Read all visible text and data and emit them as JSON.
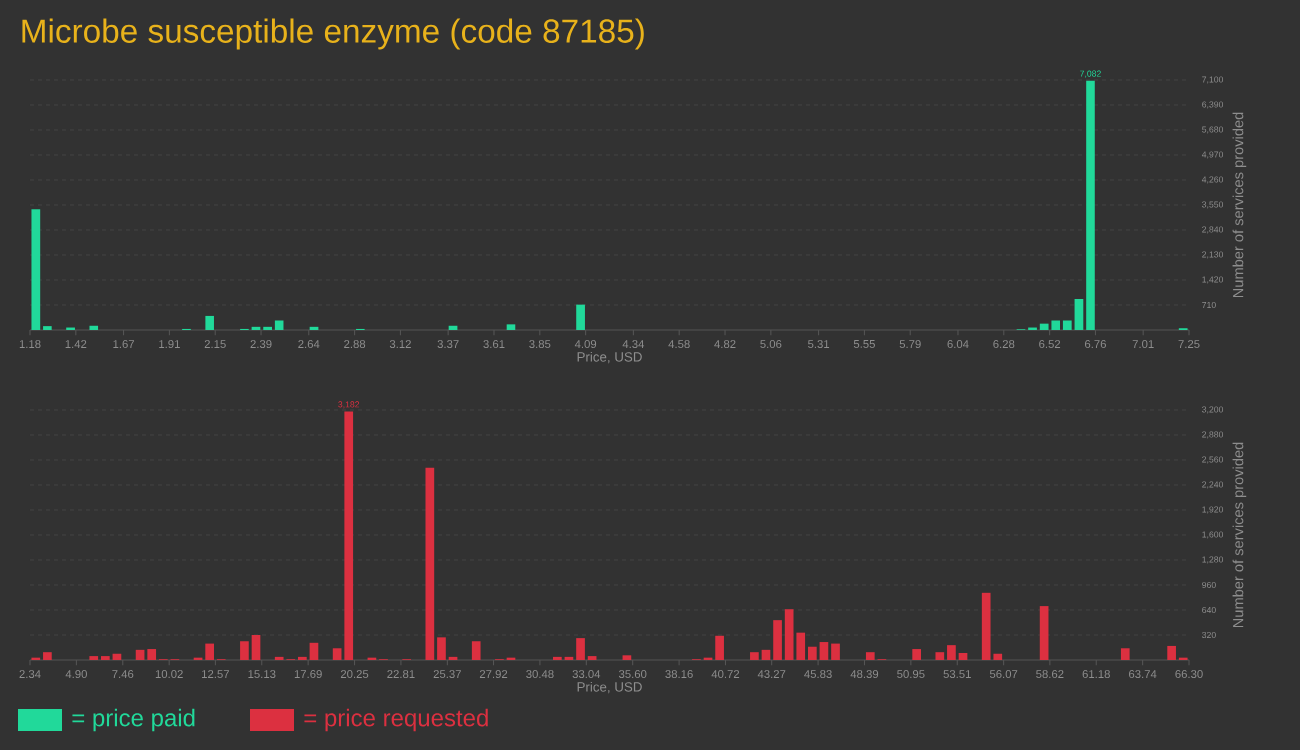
{
  "chart_data": [
    {
      "type": "histogram",
      "title": "Microbe susceptible enzyme (code 87185)",
      "xlabel": "Price, USD",
      "ylabel": "Number of services provided",
      "grid": "y",
      "legend": "bottom",
      "bins": [
        1.18,
        1.241,
        1.301,
        1.362,
        1.423,
        1.484,
        1.544,
        1.605,
        1.666,
        1.726,
        1.787,
        1.848,
        1.908,
        1.969,
        2.03,
        2.091,
        2.151,
        2.212,
        2.273,
        2.333,
        2.394,
        2.455,
        2.515,
        2.576,
        2.637,
        2.698,
        2.758,
        2.819,
        2.88,
        2.94,
        3.001,
        3.062,
        3.122,
        3.183,
        3.244,
        3.305,
        3.365,
        3.426,
        3.487,
        3.547,
        3.608,
        3.669,
        3.729,
        3.79,
        3.851,
        3.912,
        3.972,
        4.033,
        4.094,
        4.154,
        4.215,
        4.276,
        4.336,
        4.397,
        4.458,
        4.519,
        4.579,
        4.64,
        4.701,
        4.761,
        4.822,
        4.883,
        4.943,
        5.004,
        5.065,
        5.126,
        5.186,
        5.247,
        5.308,
        5.368,
        5.429,
        5.49,
        5.55,
        5.611,
        5.672,
        5.733,
        5.793,
        5.854,
        5.915,
        5.975,
        6.036,
        6.097,
        6.157,
        6.218,
        6.279,
        6.34,
        6.4,
        6.461,
        6.522,
        6.582,
        6.643,
        6.704,
        6.764,
        6.825,
        6.886,
        6.947,
        7.007,
        7.068,
        7.129,
        7.189,
        7.25
      ],
      "series": [
        {
          "name": "= price paid",
          "color": "#21d99a",
          "values": [
            3430,
            110,
            0,
            70,
            0,
            120,
            0,
            0,
            0,
            0,
            0,
            0,
            0,
            30,
            0,
            400,
            0,
            0,
            30,
            90,
            90,
            270,
            0,
            0,
            90,
            0,
            0,
            0,
            30,
            0,
            0,
            0,
            0,
            0,
            0,
            0,
            120,
            0,
            0,
            0,
            0,
            160,
            0,
            0,
            0,
            0,
            0,
            720,
            0,
            0,
            0,
            0,
            0,
            0,
            0,
            0,
            0,
            0,
            0,
            0,
            0,
            0,
            0,
            0,
            0,
            0,
            0,
            0,
            0,
            0,
            0,
            0,
            0,
            0,
            0,
            0,
            0,
            0,
            0,
            0,
            0,
            0,
            0,
            0,
            0,
            20,
            70,
            180,
            270,
            270,
            880,
            7082,
            0,
            0,
            0,
            0,
            0,
            0,
            0,
            50
          ],
          "value_labels": [
            null,
            null,
            null,
            null,
            null,
            null,
            null,
            null,
            null,
            null,
            null,
            null,
            null,
            null,
            null,
            null,
            null,
            null,
            null,
            null,
            null,
            null,
            null,
            null,
            null,
            null,
            null,
            null,
            null,
            null,
            null,
            null,
            null,
            null,
            null,
            null,
            null,
            null,
            null,
            null,
            null,
            null,
            null,
            null,
            null,
            null,
            null,
            null,
            null,
            null,
            null,
            null,
            null,
            null,
            null,
            null,
            null,
            null,
            null,
            null,
            null,
            null,
            null,
            null,
            null,
            null,
            null,
            null,
            null,
            null,
            null,
            null,
            null,
            null,
            null,
            null,
            null,
            null,
            null,
            null,
            null,
            null,
            null,
            null,
            null,
            null,
            null,
            null,
            null,
            null,
            null,
            "7,082",
            null,
            null,
            null,
            null,
            null,
            null,
            null,
            null
          ]
        }
      ],
      "xlim": [
        1.18,
        7.25
      ],
      "xticks": [
        1.18,
        1.42,
        1.67,
        1.91,
        2.15,
        2.39,
        2.64,
        2.88,
        3.12,
        3.37,
        3.61,
        3.85,
        4.09,
        4.34,
        4.58,
        4.82,
        5.06,
        5.31,
        5.55,
        5.79,
        6.04,
        6.28,
        6.52,
        6.76,
        7.01,
        7.25
      ],
      "ylim": [
        0,
        7100
      ],
      "yticks": [
        710,
        {
          "value": 1420,
          "label": "1,420"
        },
        {
          "value": 2130,
          "label": "2,130"
        },
        {
          "value": 2840,
          "label": "2,840"
        },
        {
          "value": 3550,
          "label": "3,550"
        },
        {
          "value": 4260,
          "label": "4,260"
        },
        {
          "value": 4970,
          "label": "4,970"
        },
        {
          "value": 5680,
          "label": "5,680"
        },
        {
          "value": 6390,
          "label": "6,390"
        },
        {
          "value": 7100,
          "label": "7,100"
        }
      ]
    },
    {
      "type": "histogram",
      "xlabel": "Price, USD",
      "ylabel": "Number of services provided",
      "grid": "y",
      "legend": "bottom",
      "bins": [
        2.34,
        2.98,
        3.619,
        4.259,
        4.898,
        5.538,
        6.178,
        6.817,
        7.457,
        8.096,
        8.736,
        9.376,
        10.015,
        10.655,
        11.294,
        11.934,
        12.574,
        13.213,
        13.853,
        14.492,
        15.132,
        15.772,
        16.411,
        17.051,
        17.69,
        18.33,
        18.97,
        19.609,
        20.249,
        20.888,
        21.528,
        22.168,
        22.807,
        23.447,
        24.086,
        24.726,
        25.366,
        26.005,
        26.645,
        27.284,
        27.924,
        28.564,
        29.203,
        29.843,
        30.482,
        31.122,
        31.762,
        32.401,
        33.041,
        33.68,
        34.32,
        34.96,
        35.599,
        36.239,
        36.878,
        37.518,
        38.158,
        38.797,
        39.437,
        40.076,
        40.716,
        41.356,
        41.995,
        42.635,
        43.274,
        43.914,
        44.554,
        45.193,
        45.833,
        46.472,
        47.112,
        47.752,
        48.391,
        49.031,
        49.67,
        50.31,
        50.95,
        51.589,
        52.229,
        52.868,
        53.508,
        54.148,
        54.787,
        55.427,
        56.066,
        56.706,
        57.346,
        57.985,
        58.625,
        59.264,
        59.904,
        60.544,
        61.183,
        61.823,
        62.462,
        63.102,
        63.742,
        64.381,
        65.021,
        65.66,
        66.3
      ],
      "series": [
        {
          "name": "= price requested",
          "color": "#dc3040",
          "values": [
            30,
            100,
            0,
            0,
            0,
            50,
            50,
            80,
            0,
            130,
            140,
            10,
            10,
            0,
            30,
            210,
            10,
            0,
            240,
            320,
            0,
            40,
            10,
            40,
            220,
            0,
            150,
            3182,
            0,
            30,
            10,
            0,
            10,
            0,
            2460,
            290,
            40,
            0,
            240,
            0,
            10,
            30,
            0,
            0,
            0,
            40,
            40,
            280,
            50,
            0,
            0,
            60,
            0,
            0,
            0,
            0,
            0,
            10,
            30,
            310,
            0,
            0,
            100,
            130,
            510,
            650,
            350,
            170,
            230,
            210,
            0,
            0,
            100,
            10,
            0,
            0,
            140,
            0,
            100,
            190,
            90,
            0,
            860,
            80,
            0,
            0,
            0,
            690,
            0,
            0,
            0,
            0,
            0,
            0,
            150,
            0,
            0,
            0,
            180,
            30
          ],
          "value_labels": [
            null,
            null,
            null,
            null,
            null,
            null,
            null,
            null,
            null,
            null,
            null,
            null,
            null,
            null,
            null,
            null,
            null,
            null,
            null,
            null,
            null,
            null,
            null,
            null,
            null,
            null,
            null,
            "3,182",
            null,
            null,
            null,
            null,
            null,
            null,
            null,
            null,
            null,
            null,
            null,
            null,
            null,
            null,
            null,
            null,
            null,
            null,
            null,
            null,
            null,
            null,
            null,
            null,
            null,
            null,
            null,
            null,
            null,
            null,
            null,
            null,
            null,
            null,
            null,
            null,
            null,
            null,
            null,
            null,
            null,
            null,
            null,
            null,
            null,
            null,
            null,
            null,
            null,
            null,
            null,
            null,
            null,
            null,
            null,
            null,
            null,
            null,
            null,
            null,
            null,
            null,
            null,
            null,
            null,
            null,
            null,
            null,
            null,
            null,
            null,
            null
          ]
        }
      ],
      "xlim": [
        2.34,
        66.3
      ],
      "xticks": [
        2.34,
        {
          "value": 4.9,
          "label": "4.90"
        },
        7.46,
        10.02,
        12.57,
        15.13,
        17.69,
        20.25,
        22.81,
        25.37,
        27.92,
        30.48,
        33.04,
        {
          "value": 35.6,
          "label": "35.60"
        },
        38.16,
        40.72,
        43.27,
        45.83,
        48.39,
        50.95,
        53.51,
        56.07,
        58.62,
        61.18,
        63.74,
        {
          "value": 66.3,
          "label": "66.30"
        }
      ],
      "ylim": [
        0,
        3200
      ],
      "yticks": [
        320,
        640,
        960,
        {
          "value": 1280,
          "label": "1,280"
        },
        {
          "value": 1600,
          "label": "1,600"
        },
        {
          "value": 1920,
          "label": "1,920"
        },
        {
          "value": 2240,
          "label": "2,240"
        },
        {
          "value": 2560,
          "label": "2,560"
        },
        {
          "value": 2880,
          "label": "2,880"
        },
        {
          "value": 3200,
          "label": "3,200"
        }
      ]
    }
  ]
}
